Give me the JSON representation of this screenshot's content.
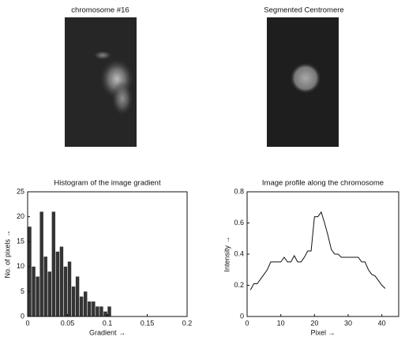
{
  "images": [
    {
      "title": "chromosome #16"
    },
    {
      "title": "Segmented Centromere"
    }
  ],
  "chart_data": [
    {
      "type": "histogram",
      "title": "Histogram of the image gradient",
      "xlabel": "Gradient →",
      "ylabel": "No. of pixels →",
      "color": "#111111",
      "bins": [
        0,
        0.005,
        0.01,
        0.015,
        0.02,
        0.025,
        0.03,
        0.035,
        0.04,
        0.045,
        0.05,
        0.055,
        0.06,
        0.065,
        0.07,
        0.075,
        0.08,
        0.085,
        0.09,
        0.095,
        0.1,
        0.105
      ],
      "values": [
        18,
        10,
        8,
        21,
        12,
        9,
        21,
        13,
        14,
        10,
        11,
        6,
        8,
        4,
        5,
        3,
        3,
        2,
        2,
        1,
        2
      ],
      "xlim": [
        0,
        0.2
      ],
      "xticks": [
        0,
        0.05,
        0.1,
        0.15,
        0.2
      ],
      "ylim": [
        0,
        25
      ],
      "yticks": [
        0,
        5,
        10,
        15,
        20,
        25
      ]
    },
    {
      "type": "line",
      "title": "Image profile along the chromosome",
      "xlabel": "Pixel →",
      "ylabel": "Intensity →",
      "color": "#111111",
      "x": [
        1,
        2,
        3,
        4,
        5,
        6,
        7,
        8,
        9,
        10,
        11,
        12,
        13,
        14,
        15,
        16,
        17,
        18,
        19,
        20,
        21,
        22,
        23,
        24,
        25,
        26,
        27,
        28,
        29,
        30,
        31,
        32,
        33,
        34,
        35,
        36,
        37,
        38,
        39,
        40,
        41
      ],
      "values": [
        0.17,
        0.21,
        0.21,
        0.24,
        0.27,
        0.3,
        0.35,
        0.35,
        0.35,
        0.35,
        0.38,
        0.35,
        0.35,
        0.39,
        0.35,
        0.35,
        0.38,
        0.42,
        0.42,
        0.64,
        0.64,
        0.67,
        0.6,
        0.52,
        0.43,
        0.4,
        0.4,
        0.38,
        0.38,
        0.38,
        0.38,
        0.38,
        0.38,
        0.35,
        0.35,
        0.3,
        0.27,
        0.26,
        0.23,
        0.2,
        0.18
      ],
      "xlim": [
        0,
        45
      ],
      "xticks": [
        0,
        10,
        20,
        30,
        40
      ],
      "ylim": [
        0,
        0.8
      ],
      "yticks": [
        0,
        0.2,
        0.4,
        0.6,
        0.8
      ]
    }
  ]
}
